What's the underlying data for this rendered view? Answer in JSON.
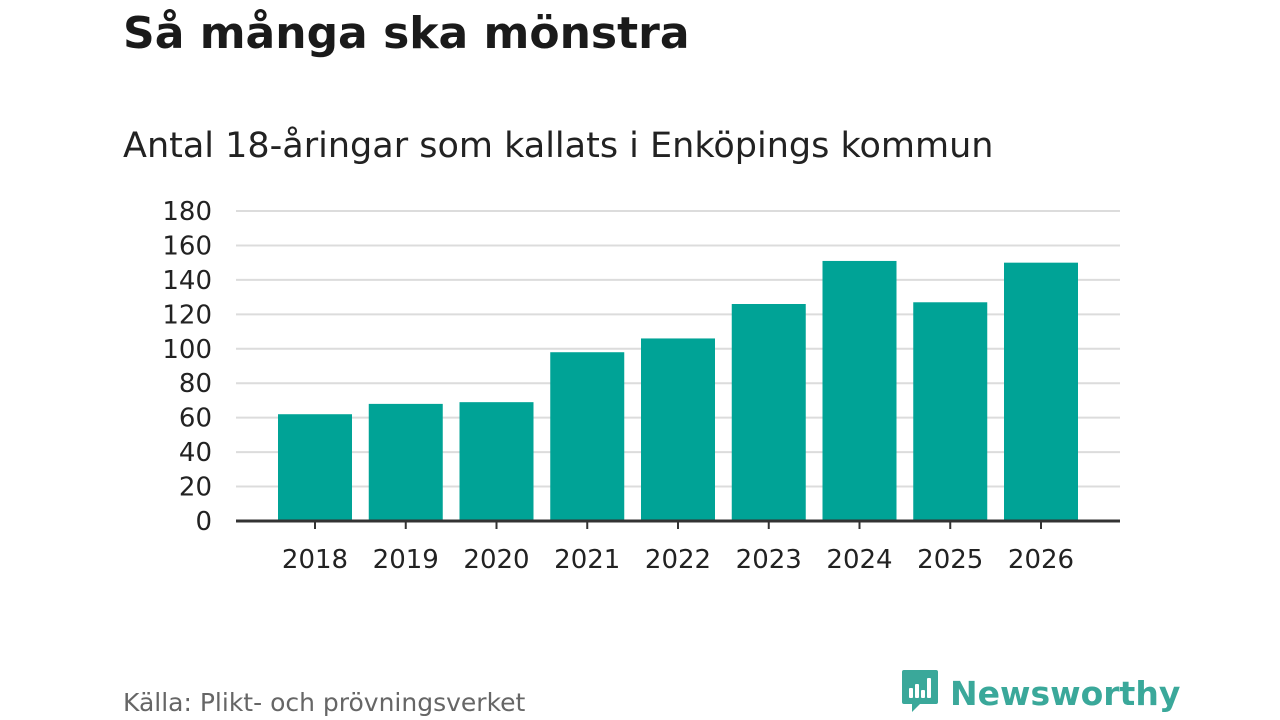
{
  "title": "Så många ska mönstra",
  "subtitle": "Antal 18-åringar som kallats i Enköpings kommun",
  "source": "Källa: Plikt- och prövningsverket",
  "brand": {
    "name": "Newsworthy",
    "color": "#3aa89a",
    "icon": "bar-chart-speech-bubble-icon"
  },
  "chart_data": {
    "type": "bar",
    "categories": [
      "2018",
      "2019",
      "2020",
      "2021",
      "2022",
      "2023",
      "2024",
      "2025",
      "2026"
    ],
    "values": [
      62,
      68,
      69,
      98,
      106,
      126,
      151,
      127,
      150
    ],
    "ylim": [
      0,
      180
    ],
    "yticks": [
      "0",
      "20",
      "40",
      "60",
      "80",
      "100",
      "120",
      "140",
      "160",
      "180"
    ],
    "xlabel": "",
    "ylabel": "",
    "grid": true,
    "bar_color": "#00a396",
    "grid_color": "#dcdcdc",
    "axis_color": "#333333"
  }
}
